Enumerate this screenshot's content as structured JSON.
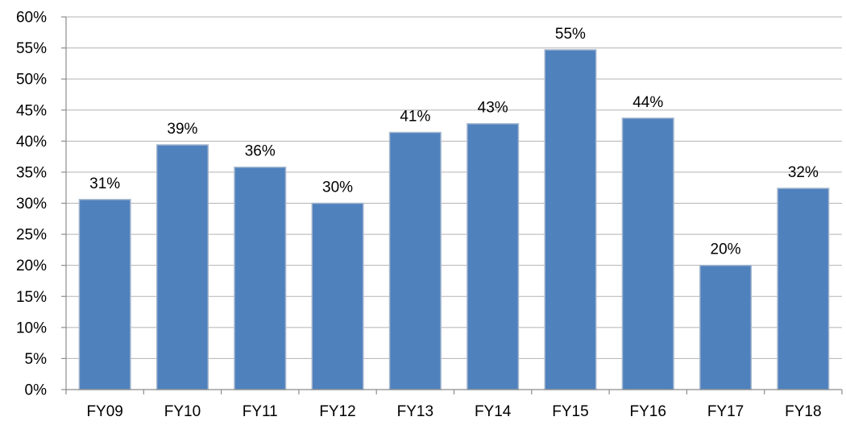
{
  "chart_data": {
    "type": "bar",
    "title": "",
    "xlabel": "",
    "ylabel": "",
    "categories": [
      "FY09",
      "FY10",
      "FY11",
      "FY12",
      "FY13",
      "FY14",
      "FY15",
      "FY16",
      "FY17",
      "FY18"
    ],
    "values": [
      30.6,
      39.4,
      35.8,
      30.0,
      41.4,
      42.8,
      54.7,
      43.7,
      20.0,
      32.4
    ],
    "data_labels": [
      "31%",
      "39%",
      "36%",
      "30%",
      "41%",
      "43%",
      "55%",
      "44%",
      "20%",
      "32%"
    ],
    "ylim": [
      0,
      60
    ],
    "y_ticks": [
      0,
      5,
      10,
      15,
      20,
      25,
      30,
      35,
      40,
      45,
      50,
      55,
      60
    ],
    "y_tick_labels": [
      "0%",
      "5%",
      "10%",
      "15%",
      "20%",
      "25%",
      "30%",
      "35%",
      "40%",
      "45%",
      "50%",
      "55%",
      "60%"
    ],
    "grid": true,
    "legend": "none",
    "bar_color": "#4f81bd",
    "bar_edge_color": "#a6b8cf"
  }
}
